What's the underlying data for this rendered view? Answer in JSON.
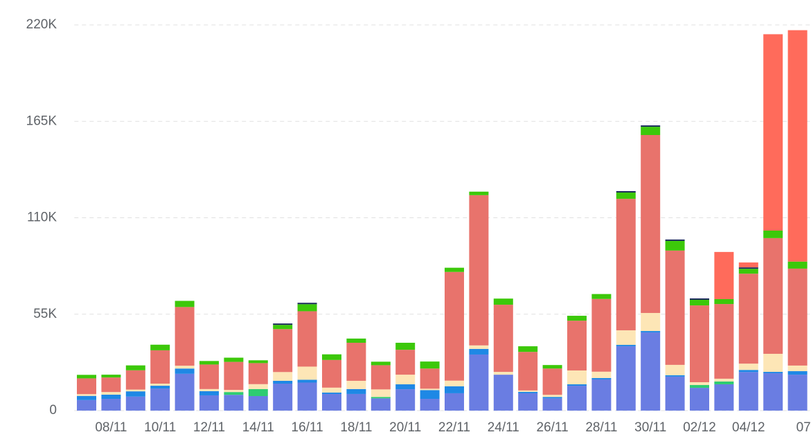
{
  "chart_data": {
    "type": "stacked_bar",
    "categories": [
      null,
      "08/11",
      null,
      "10/11",
      null,
      "12/11",
      null,
      "14/11",
      null,
      "16/11",
      null,
      "18/11",
      null,
      "20/11",
      null,
      "22/11",
      null,
      "24/11",
      null,
      "26/11",
      null,
      "28/11",
      null,
      "30/11",
      null,
      "02/12",
      null,
      "04/12",
      null,
      "07"
    ],
    "series": [
      {
        "color": "#6a7de2",
        "values": [
          6000,
          6700,
          8000,
          12600,
          21000,
          8700,
          9000,
          8300,
          15400,
          16000,
          9500,
          9500,
          7000,
          12200,
          6700,
          9900,
          32000,
          20500,
          9900,
          7000,
          14200,
          17800,
          36700,
          44600,
          19400,
          13000,
          15000,
          22000,
          21300,
          20500
        ]
      },
      {
        "color": "#1e88e5",
        "values": [
          2400,
          2400,
          3000,
          1600,
          3000,
          2400,
          0,
          0,
          1600,
          1600,
          800,
          2800,
          0,
          2800,
          5000,
          4000,
          3200,
          0,
          800,
          800,
          800,
          800,
          800,
          800,
          800,
          0,
          0,
          1200,
          800,
          2000
        ]
      },
      {
        "color": "#2ecc71",
        "values": [
          0,
          0,
          0,
          0,
          0,
          0,
          1600,
          4000,
          0,
          0,
          0,
          0,
          800,
          0,
          0,
          0,
          0,
          0,
          0,
          0,
          0,
          0,
          0,
          0,
          0,
          1600,
          1600,
          0,
          0,
          0
        ]
      },
      {
        "color": "#fde6b6",
        "values": [
          1000,
          1500,
          1000,
          1200,
          1600,
          1200,
          1200,
          2800,
          5000,
          7500,
          2800,
          4700,
          4300,
          5500,
          800,
          3200,
          2000,
          1600,
          800,
          1200,
          7900,
          3600,
          8300,
          10300,
          5900,
          1600,
          1600,
          3600,
          10300,
          3200
        ]
      },
      {
        "color": "#e8736c",
        "values": [
          9000,
          8300,
          11000,
          19000,
          33500,
          14000,
          16000,
          12000,
          24500,
          31600,
          15800,
          21700,
          13800,
          14200,
          11500,
          62000,
          85700,
          38300,
          22000,
          15000,
          28400,
          41500,
          75000,
          101500,
          65200,
          43800,
          42600,
          51300,
          66000,
          55300
        ]
      },
      {
        "color": "#3cc80a",
        "values": [
          2000,
          1600,
          2800,
          3200,
          3500,
          2000,
          2400,
          1600,
          2400,
          4000,
          3200,
          2400,
          2000,
          4000,
          4000,
          2400,
          2000,
          3500,
          3200,
          2000,
          2800,
          2800,
          3600,
          4700,
          5500,
          3200,
          2800,
          2800,
          4300,
          4000
        ]
      },
      {
        "color": "#1a2a5a",
        "values": [
          0,
          0,
          0,
          0,
          0,
          0,
          0,
          0,
          800,
          800,
          0,
          0,
          0,
          0,
          0,
          0,
          0,
          0,
          0,
          0,
          0,
          0,
          800,
          800,
          800,
          800,
          0,
          800,
          0,
          0
        ]
      },
      {
        "color": "#ff6b5b",
        "values": [
          0,
          0,
          0,
          0,
          0,
          0,
          0,
          0,
          0,
          0,
          0,
          0,
          0,
          0,
          0,
          0,
          0,
          0,
          0,
          0,
          0,
          0,
          0,
          0,
          0,
          0,
          26900,
          2800,
          112000,
          132000
        ]
      }
    ],
    "ylim": [
      0,
      220000
    ],
    "yticks": [
      0,
      {
        "value": 55000,
        "label": "55K"
      },
      {
        "value": 110000,
        "label": "110K"
      },
      {
        "value": 165000,
        "label": "165K"
      },
      {
        "value": 220000,
        "label": "220K"
      }
    ],
    "grid": true
  }
}
